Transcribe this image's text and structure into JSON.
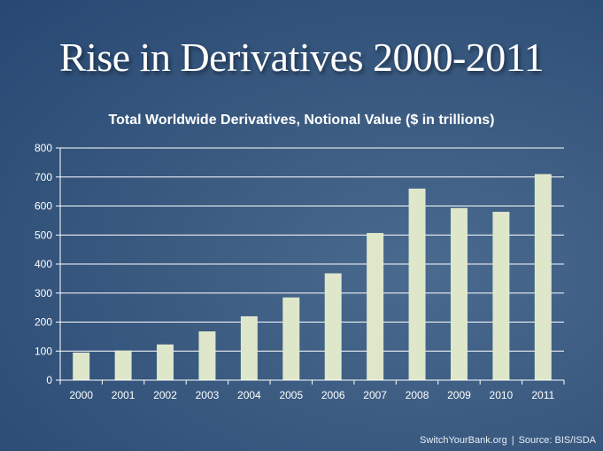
{
  "slide": {
    "title": "Rise in Derivatives 2000-2011"
  },
  "chart_data": {
    "type": "bar",
    "title": "Total Worldwide Derivatives, Notional Value ($ in trillions)",
    "xlabel": "",
    "ylabel": "",
    "categories": [
      "2000",
      "2001",
      "2002",
      "2003",
      "2004",
      "2005",
      "2006",
      "2007",
      "2008",
      "2009",
      "2010",
      "2011"
    ],
    "values": [
      95,
      102,
      123,
      168,
      220,
      285,
      368,
      507,
      660,
      593,
      580,
      710
    ],
    "ylim": [
      0,
      800
    ],
    "yticks": [
      "0",
      "100",
      "200",
      "300",
      "400",
      "500",
      "600",
      "700",
      "800"
    ],
    "grid": true,
    "bar_color": "#dfe7cb",
    "grid_color": "#ffffff"
  },
  "footer": {
    "site": "SwitchYourBank.org",
    "separator": "|",
    "source": "Source: BIS/ISDA"
  }
}
